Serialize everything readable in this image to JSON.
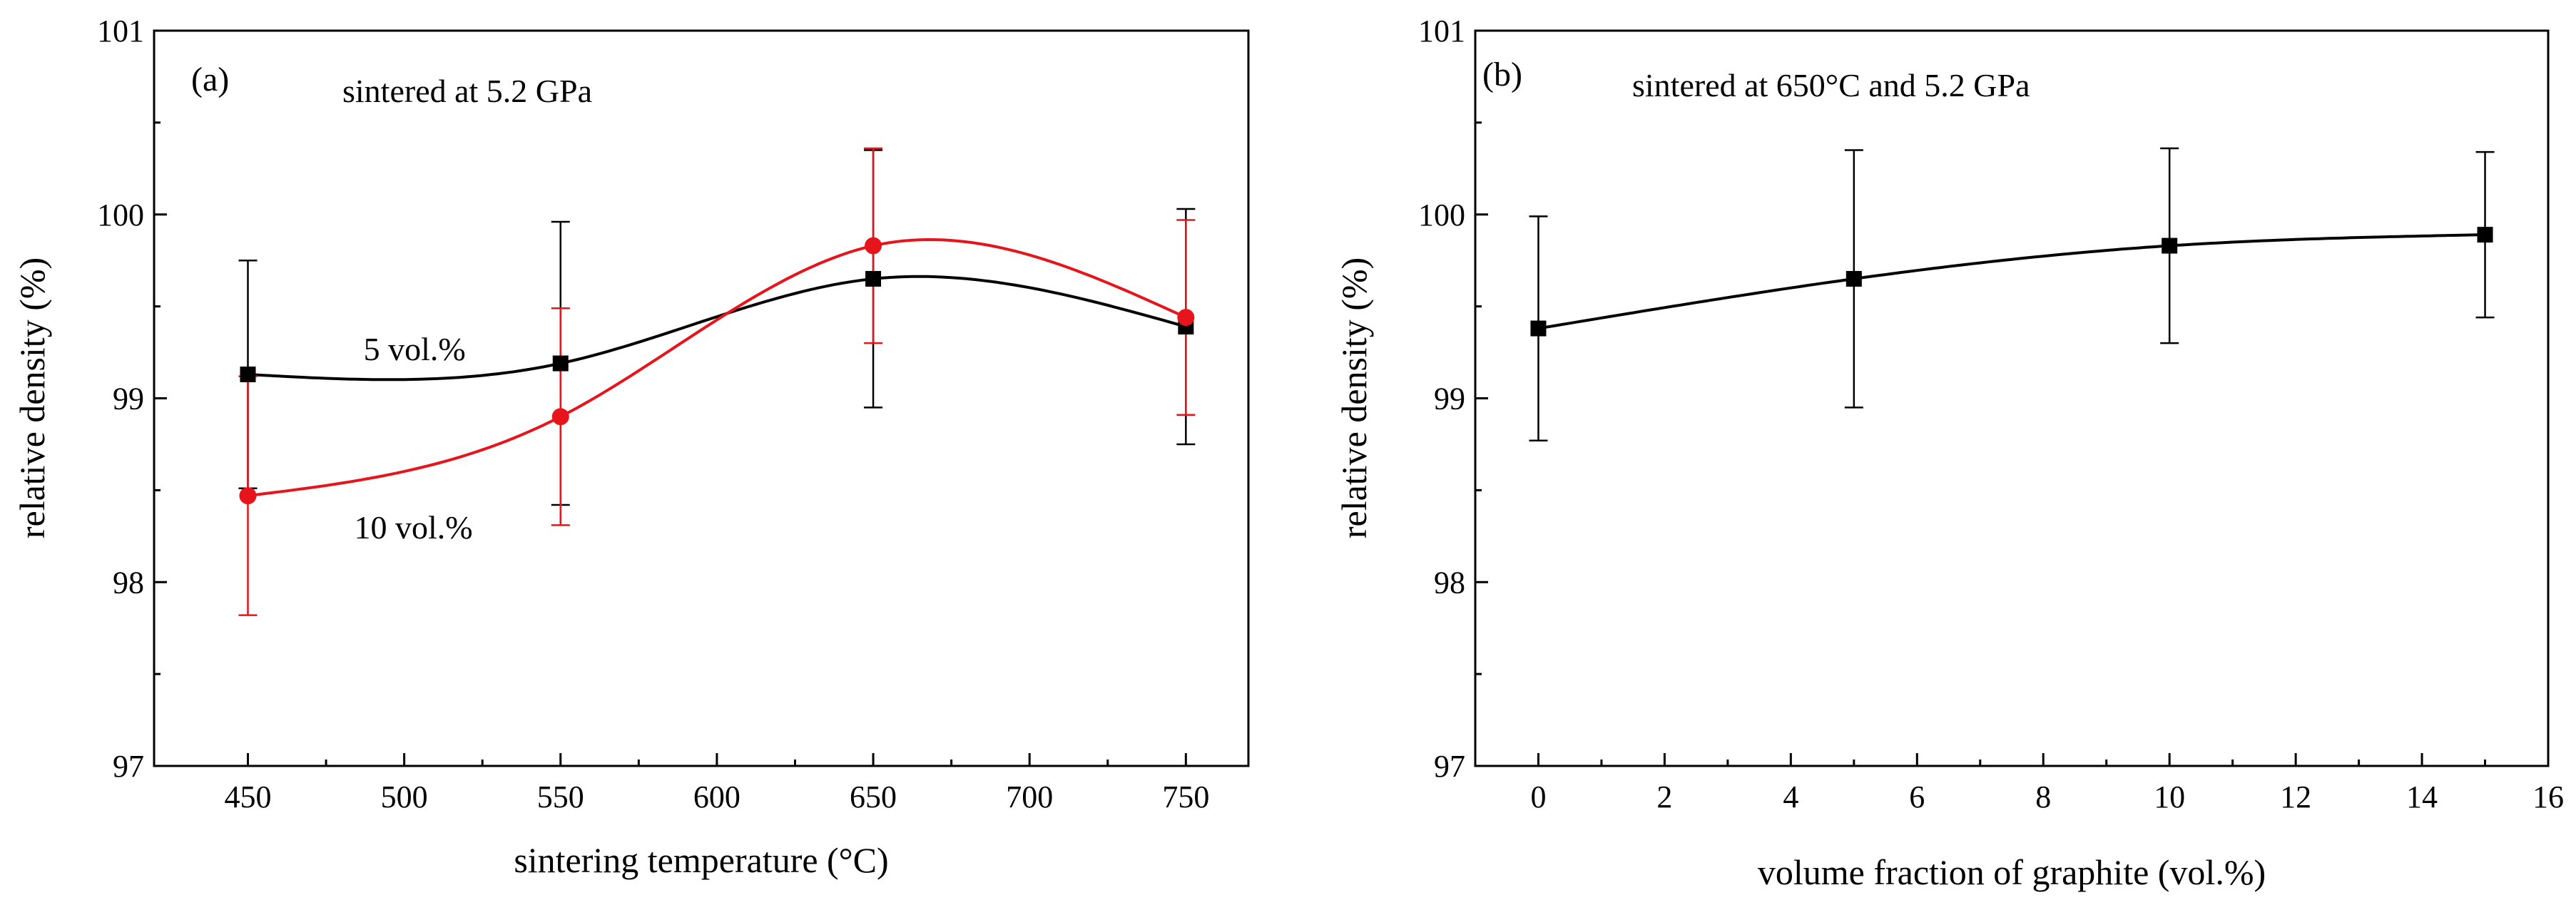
{
  "chart_data": [
    {
      "type": "line",
      "panel_label": "(a)",
      "title": "sintered at 5.2 GPa",
      "xlabel": "sintering temperature (°C)",
      "ylabel": "relative density (%)",
      "xlim": [
        420,
        770
      ],
      "ylim": [
        97,
        101
      ],
      "xticks": [
        450,
        500,
        550,
        600,
        650,
        700,
        750
      ],
      "xtick_labels": [
        "450",
        "500",
        "550",
        "600",
        "650",
        "700",
        "750"
      ],
      "yticks": [
        97,
        98,
        99,
        100,
        101
      ],
      "ytick_labels": [
        "97",
        "98",
        "99",
        "100",
        "101"
      ],
      "series": [
        {
          "name": "5 vol.%",
          "color": "#000000",
          "marker": "square",
          "x": [
            450,
            550,
            650,
            750
          ],
          "y": [
            99.13,
            99.19,
            99.65,
            99.39
          ],
          "err_low": [
            0.62,
            0.77,
            0.7,
            0.64
          ],
          "err_high": [
            0.62,
            0.77,
            0.7,
            0.64
          ],
          "label_at": [
            487,
            99.27
          ]
        },
        {
          "name": "10 vol.%",
          "color": "#e8141c",
          "marker": "circle",
          "x": [
            450,
            550,
            650,
            750
          ],
          "y": [
            98.47,
            98.9,
            99.83,
            99.44
          ],
          "err_low": [
            0.65,
            0.59,
            0.53,
            0.53
          ],
          "err_high": [
            0.65,
            0.59,
            0.53,
            0.53
          ],
          "label_at": [
            484,
            98.3
          ]
        }
      ]
    },
    {
      "type": "line",
      "panel_label": "(b)",
      "title": "sintered at 650°C and 5.2 GPa",
      "xlabel": "volume fraction of graphite (vol.%)",
      "ylabel": "relative density (%)",
      "xlim": [
        -1,
        16
      ],
      "ylim": [
        97,
        101
      ],
      "xticks": [
        0,
        2,
        4,
        6,
        8,
        10,
        12,
        14,
        16
      ],
      "xtick_labels": [
        "0",
        "2",
        "4",
        "6",
        "8",
        "10",
        "12",
        "14",
        "16"
      ],
      "yticks": [
        97,
        98,
        99,
        100,
        101
      ],
      "ytick_labels": [
        "97",
        "98",
        "99",
        "100",
        "101"
      ],
      "series": [
        {
          "name": "",
          "color": "#000000",
          "marker": "square",
          "x": [
            0,
            5,
            10,
            15
          ],
          "y": [
            99.38,
            99.65,
            99.83,
            99.89
          ],
          "err_low": [
            0.61,
            0.7,
            0.53,
            0.45
          ],
          "err_high": [
            0.61,
            0.7,
            0.53,
            0.45
          ]
        }
      ]
    }
  ]
}
